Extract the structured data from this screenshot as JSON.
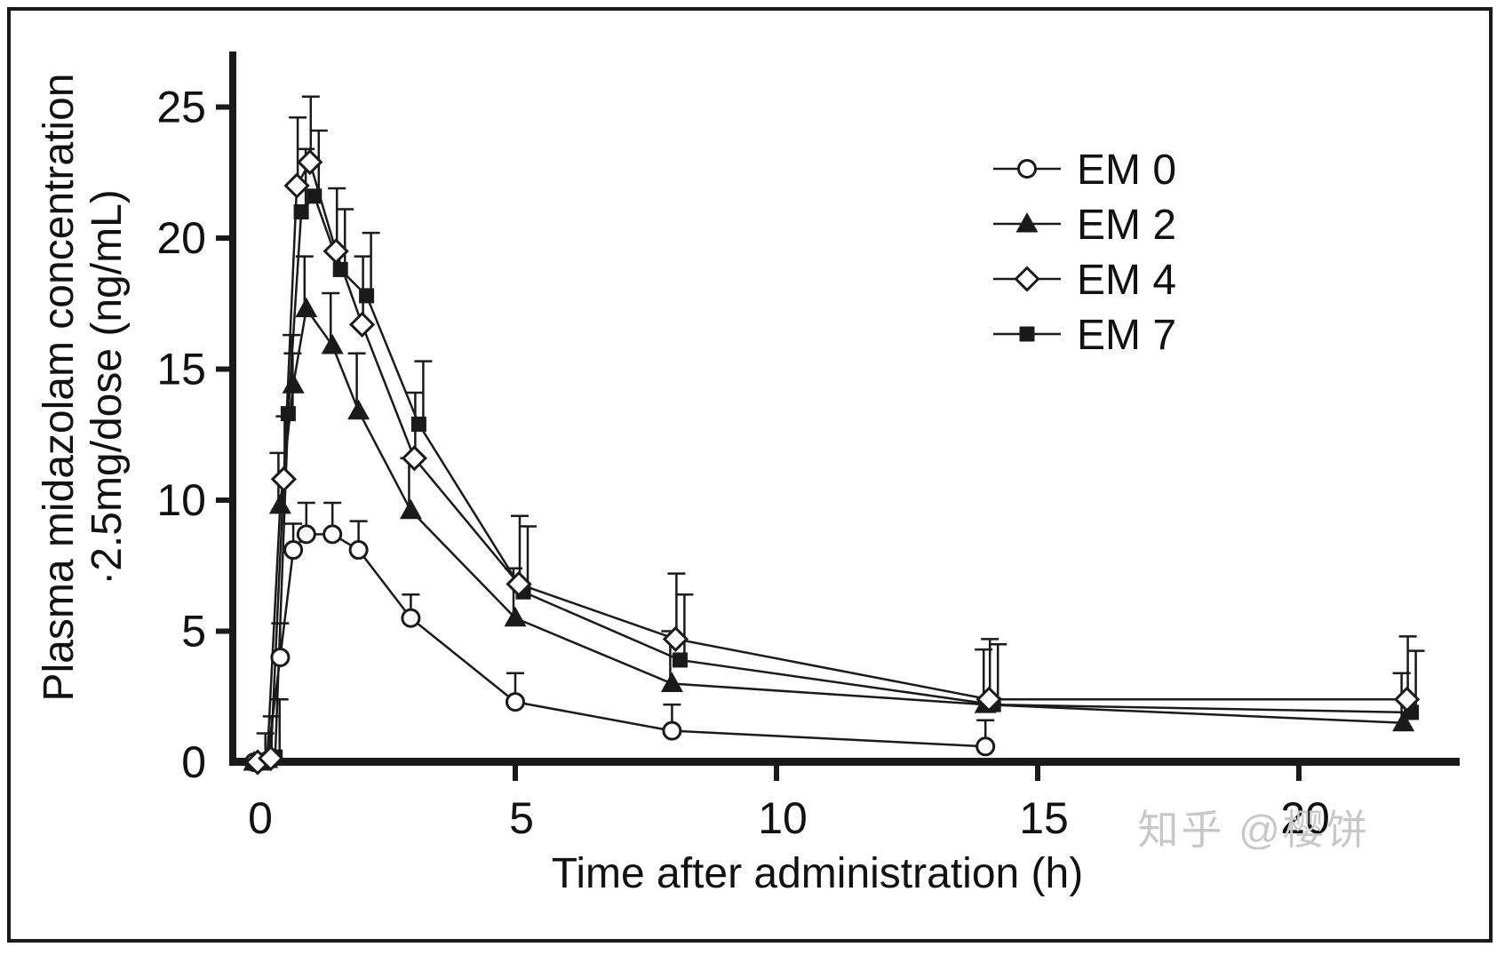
{
  "figure": {
    "background": "#ffffff",
    "border_color": "#1a1a1a",
    "ink": "#1a1a1a",
    "watermark": "知乎 @樱饼",
    "watermark_color": "#c8c8c8"
  },
  "chart_data": {
    "type": "line",
    "title": "",
    "xlabel": "Time after administration (h)",
    "ylabel_lines": [
      "Plasma midazolam concentration",
      "·2.5mg/dose (ng/mL)"
    ],
    "x_ticks": [
      0,
      5,
      10,
      15,
      20
    ],
    "y_ticks": [
      0,
      5,
      10,
      15,
      20,
      25
    ],
    "xlim": [
      0,
      23.2
    ],
    "ylim": [
      0,
      27
    ],
    "grid": false,
    "error_bars": "upper SD bars with caps",
    "legend": {
      "position": "upper-right-inside",
      "items": [
        "EM 0",
        "EM 2",
        "EM 4",
        "EM 7"
      ]
    },
    "series": [
      {
        "name": "EM 0",
        "marker": "open-circle",
        "x": [
          0,
          0.25,
          0.5,
          0.75,
          1,
          1.5,
          2,
          3,
          5,
          8,
          14
        ],
        "y": [
          0,
          0.05,
          4.0,
          8.1,
          8.7,
          8.7,
          8.1,
          5.5,
          2.3,
          1.2,
          0.6
        ],
        "err": [
          0,
          0,
          1.3,
          1.0,
          1.2,
          1.2,
          1.1,
          0.9,
          1.1,
          1.0,
          1.0
        ]
      },
      {
        "name": "EM 2",
        "marker": "filled-triangle",
        "x": [
          0,
          0.25,
          0.5,
          0.75,
          1,
          1.5,
          2,
          3,
          5,
          8,
          14,
          22
        ],
        "y": [
          0,
          0.1,
          9.8,
          14.4,
          17.3,
          15.9,
          13.4,
          9.6,
          5.5,
          3.0,
          2.2,
          1.5
        ],
        "err": [
          0,
          1.0,
          2.0,
          1.9,
          2.0,
          2.0,
          2.2,
          2.0,
          1.9,
          2.0,
          2.1,
          1.9
        ]
      },
      {
        "name": "EM 4",
        "marker": "open-diamond",
        "x": [
          0,
          0.25,
          0.5,
          0.75,
          1,
          1.5,
          2,
          3,
          5,
          8,
          14,
          22
        ],
        "y": [
          0,
          0.15,
          10.8,
          22.0,
          22.9,
          19.5,
          16.7,
          11.6,
          6.8,
          4.7,
          2.4,
          2.4
        ],
        "err": [
          0,
          1.6,
          2.4,
          2.6,
          2.5,
          2.4,
          2.6,
          2.5,
          2.6,
          2.5,
          2.3,
          2.4
        ]
      },
      {
        "name": "EM 7",
        "marker": "filled-square",
        "x": [
          0,
          0.25,
          0.5,
          0.75,
          1,
          1.5,
          2,
          3,
          5,
          8,
          14,
          22
        ],
        "y": [
          0,
          0.2,
          13.3,
          21.0,
          21.6,
          18.8,
          17.8,
          12.9,
          6.5,
          3.9,
          2.2,
          1.9
        ],
        "err": [
          0,
          2.2,
          2.3,
          2.4,
          2.5,
          2.3,
          2.4,
          2.4,
          2.5,
          2.5,
          2.3,
          2.35
        ]
      }
    ]
  }
}
